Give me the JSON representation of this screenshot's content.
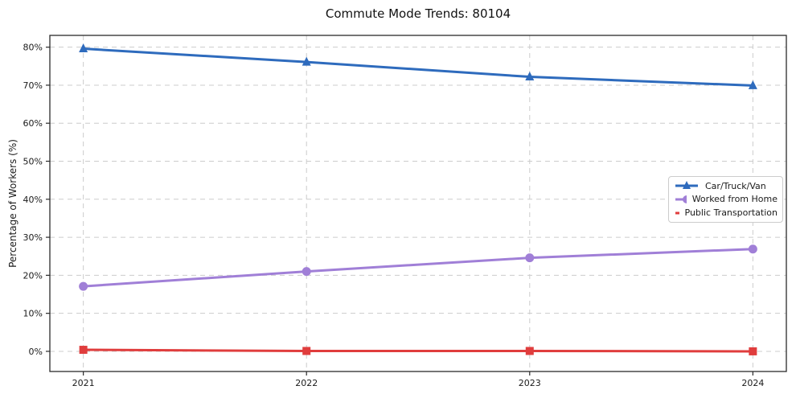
{
  "chart_data": {
    "type": "line",
    "title": "Commute Mode Trends: 80104",
    "xlabel": "",
    "ylabel": "Percentage of Workers (%)",
    "x": [
      2021,
      2022,
      2023,
      2024
    ],
    "x_tick_labels": [
      "2021",
      "2022",
      "2023",
      "2024"
    ],
    "y_tick_labels": [
      "0%",
      "10%",
      "20%",
      "30%",
      "40%",
      "50%",
      "60%",
      "70%",
      "80%"
    ],
    "y_tick_values": [
      0,
      10,
      20,
      30,
      40,
      50,
      60,
      70,
      80
    ],
    "xlim": [
      2020.85,
      2024.15
    ],
    "ylim": [
      -5.3,
      83.1
    ],
    "grid": {
      "visible": true,
      "style": "dashed",
      "axes": "both"
    },
    "legend": {
      "position": "center-right",
      "framed": true
    },
    "series": [
      {
        "name": "Car/Truck/Van",
        "color": "#2e6bbd",
        "marker": "triangle",
        "values": [
          79.6,
          76.1,
          72.2,
          69.9
        ]
      },
      {
        "name": "Worked from Home",
        "color": "#a07fd7",
        "marker": "circle",
        "values": [
          17.1,
          21.0,
          24.6,
          26.9
        ]
      },
      {
        "name": "Public Transportation",
        "color": "#e03d3d",
        "marker": "square",
        "values": [
          0.4,
          0.1,
          0.1,
          0.0
        ]
      }
    ],
    "colors": {
      "background": "#ffffff",
      "grid": "#cccccc",
      "frame": "#2b2b2b",
      "text": "#1a1a1a",
      "legend_border": "#cccccc"
    }
  }
}
